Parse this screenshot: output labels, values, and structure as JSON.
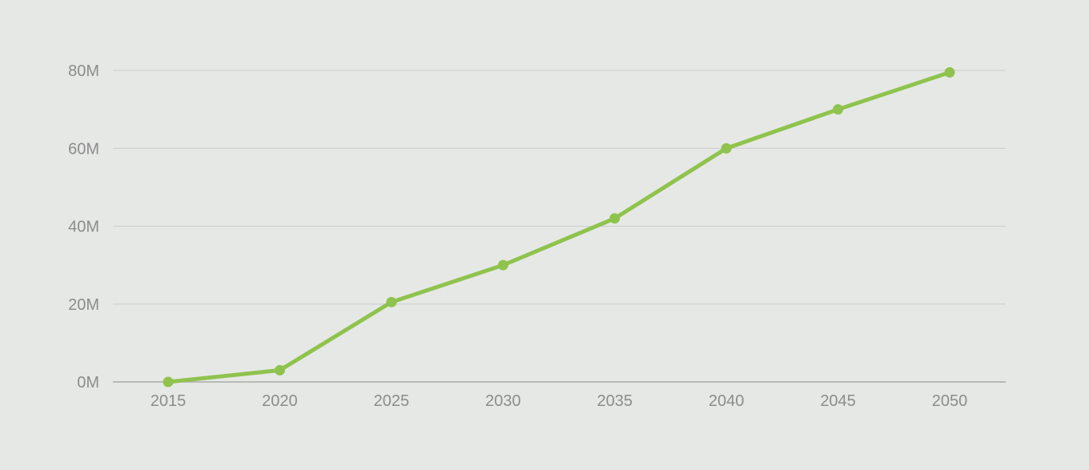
{
  "colors": {
    "background": "#e6e8e6",
    "gridline": "#cfd1cf",
    "baseline": "#a9aba9",
    "tick_label": "#8c8c8c",
    "series": "#8fc34d"
  },
  "chart_data": {
    "type": "line",
    "title": "",
    "xlabel": "",
    "ylabel": "",
    "x": [
      "2015",
      "2020",
      "2025",
      "2030",
      "2035",
      "2040",
      "2045",
      "2050"
    ],
    "series": [
      {
        "values": [
          0,
          3000000,
          20500000,
          30000000,
          42000000,
          60000000,
          70000000,
          79500000
        ]
      }
    ],
    "ylim": [
      0,
      80000000
    ],
    "y_ticks": [
      0,
      20000000,
      40000000,
      60000000,
      80000000
    ],
    "y_tick_labels": [
      "0M",
      "20M",
      "40M",
      "60M",
      "80M"
    ],
    "grid": true,
    "legend": "none",
    "markers": true
  }
}
